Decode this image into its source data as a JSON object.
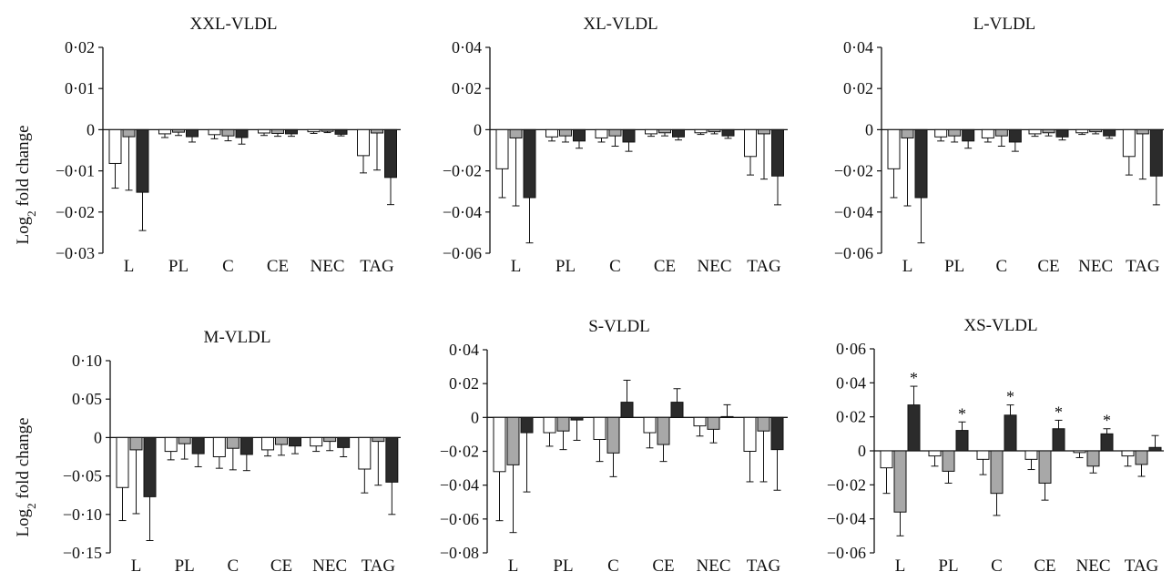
{
  "figure": {
    "ylabel_main": "Log",
    "ylabel_sub": "2",
    "ylabel_rest": " fold change",
    "series_colors": [
      "#ffffff",
      "#a8a8a8",
      "#2b2b2b"
    ]
  },
  "chart_data": [
    {
      "type": "bar",
      "title": "XXL-VLDL",
      "categories": [
        "L",
        "PL",
        "C",
        "CE",
        "NEC",
        "TAG"
      ],
      "ylim": [
        -0.03,
        0.02
      ],
      "yticks": [
        0.02,
        0.01,
        0,
        -0.01,
        -0.02,
        -0.03
      ],
      "ytick_labels": [
        "0·02",
        "0·01",
        "0",
        "−0·01",
        "−0·02",
        "−0·03"
      ],
      "series": [
        {
          "values": [
            -0.0082,
            -0.001,
            -0.0012,
            -0.0008,
            -0.0005,
            -0.0063
          ],
          "errors": [
            0.006,
            0.0009,
            0.001,
            0.0006,
            0.0004,
            0.0042
          ]
        },
        {
          "values": [
            -0.0017,
            -0.0006,
            -0.0015,
            -0.0009,
            -0.0004,
            -0.0008
          ],
          "errors": [
            0.013,
            0.0008,
            0.0012,
            0.0007,
            0.0003,
            0.009
          ]
        },
        {
          "values": [
            -0.0152,
            -0.0017,
            -0.0019,
            -0.001,
            -0.0011,
            -0.0116
          ],
          "errors": [
            0.0093,
            0.0013,
            0.0016,
            0.0006,
            0.0004,
            0.0066
          ]
        }
      ],
      "significant": [
        [],
        [],
        []
      ]
    },
    {
      "type": "bar",
      "title": "XL-VLDL",
      "categories": [
        "L",
        "PL",
        "C",
        "CE",
        "NEC",
        "TAG"
      ],
      "ylim": [
        -0.06,
        0.04
      ],
      "yticks": [
        0.04,
        0.02,
        0,
        -0.02,
        -0.04,
        -0.06
      ],
      "ytick_labels": [
        "0·04",
        "0·02",
        "0",
        "−0·02",
        "−0·04",
        "−0·06"
      ],
      "series": [
        {
          "values": [
            -0.019,
            -0.0035,
            -0.004,
            -0.002,
            -0.0015,
            -0.013
          ],
          "errors": [
            0.014,
            0.002,
            0.002,
            0.0012,
            0.0008,
            0.009
          ]
        },
        {
          "values": [
            -0.004,
            -0.003,
            -0.003,
            -0.0015,
            -0.001,
            -0.002
          ],
          "errors": [
            0.033,
            0.003,
            0.005,
            0.0015,
            0.001,
            0.022
          ]
        },
        {
          "values": [
            -0.033,
            -0.0055,
            -0.006,
            -0.0035,
            -0.003,
            -0.0225
          ],
          "errors": [
            0.022,
            0.0035,
            0.0045,
            0.0015,
            0.0012,
            0.014
          ]
        }
      ],
      "significant": [
        [],
        [],
        []
      ]
    },
    {
      "type": "bar",
      "title": "L-VLDL",
      "categories": [
        "L",
        "PL",
        "C",
        "CE",
        "NEC",
        "TAG"
      ],
      "ylim": [
        -0.06,
        0.04
      ],
      "yticks": [
        0.04,
        0.02,
        0,
        -0.02,
        -0.04,
        -0.06
      ],
      "ytick_labels": [
        "0·04",
        "0·02",
        "0",
        "−0·02",
        "−0·04",
        "−0·06"
      ],
      "series": [
        {
          "values": [
            -0.019,
            -0.0035,
            -0.004,
            -0.002,
            -0.0015,
            -0.013
          ],
          "errors": [
            0.014,
            0.002,
            0.002,
            0.0012,
            0.0008,
            0.009
          ]
        },
        {
          "values": [
            -0.004,
            -0.003,
            -0.003,
            -0.0015,
            -0.001,
            -0.002
          ],
          "errors": [
            0.033,
            0.003,
            0.005,
            0.0015,
            0.001,
            0.022
          ]
        },
        {
          "values": [
            -0.033,
            -0.0055,
            -0.006,
            -0.0035,
            -0.003,
            -0.0225
          ],
          "errors": [
            0.022,
            0.0035,
            0.0045,
            0.0015,
            0.0012,
            0.014
          ]
        }
      ],
      "significant": [
        [],
        [],
        []
      ]
    },
    {
      "type": "bar",
      "title": "M-VLDL",
      "categories": [
        "L",
        "PL",
        "C",
        "CE",
        "NEC",
        "TAG"
      ],
      "ylim": [
        -0.15,
        0.1
      ],
      "yticks": [
        0.1,
        0.05,
        0,
        -0.05,
        -0.1,
        -0.15
      ],
      "ytick_labels": [
        "0·10",
        "0·05",
        "0",
        "−0·05",
        "−0·10",
        "−0·15"
      ],
      "series": [
        {
          "values": [
            -0.065,
            -0.018,
            -0.025,
            -0.016,
            -0.011,
            -0.041
          ],
          "errors": [
            0.043,
            0.011,
            0.015,
            0.008,
            0.007,
            0.031
          ]
        },
        {
          "values": [
            -0.016,
            -0.008,
            -0.014,
            -0.009,
            -0.005,
            -0.005
          ],
          "errors": [
            0.083,
            0.02,
            0.028,
            0.014,
            0.012,
            0.057
          ]
        },
        {
          "values": [
            -0.077,
            -0.021,
            -0.022,
            -0.011,
            -0.013,
            -0.058
          ],
          "errors": [
            0.057,
            0.017,
            0.021,
            0.01,
            0.012,
            0.042
          ]
        }
      ],
      "significant": [
        [],
        [],
        []
      ]
    },
    {
      "type": "bar",
      "title": "S-VLDL",
      "categories": [
        "L",
        "PL",
        "C",
        "CE",
        "NEC",
        "TAG"
      ],
      "ylim": [
        -0.08,
        0.04
      ],
      "yticks": [
        0.04,
        0.02,
        0,
        -0.02,
        -0.04,
        -0.06,
        -0.08
      ],
      "ytick_labels": [
        "0·04",
        "0·02",
        "0",
        "−0·02",
        "−0·04",
        "−0·06",
        "−0·08"
      ],
      "series": [
        {
          "values": [
            -0.032,
            -0.009,
            -0.013,
            -0.009,
            -0.005,
            -0.02
          ],
          "errors": [
            0.029,
            0.008,
            0.013,
            0.009,
            0.006,
            0.018
          ]
        },
        {
          "values": [
            -0.028,
            -0.008,
            -0.021,
            -0.016,
            -0.007,
            -0.008
          ],
          "errors": [
            0.04,
            0.011,
            0.014,
            0.01,
            0.008,
            0.03
          ]
        },
        {
          "values": [
            -0.009,
            -0.0015,
            0.009,
            0.009,
            0.0005,
            -0.019
          ],
          "errors": [
            0.035,
            0.012,
            0.013,
            0.008,
            0.007,
            0.024
          ]
        }
      ],
      "significant": [
        [],
        [],
        []
      ]
    },
    {
      "type": "bar",
      "title": "XS-VLDL",
      "categories": [
        "L",
        "PL",
        "C",
        "CE",
        "NEC",
        "TAG"
      ],
      "ylim": [
        -0.06,
        0.06
      ],
      "yticks": [
        0.06,
        0.04,
        0.02,
        0,
        -0.02,
        -0.04,
        -0.06
      ],
      "ytick_labels": [
        "0·06",
        "0·04",
        "0·02",
        "0",
        "−0·02",
        "−0·04",
        "−0·06"
      ],
      "series": [
        {
          "values": [
            -0.01,
            -0.003,
            -0.005,
            -0.005,
            -0.001,
            -0.003
          ],
          "errors": [
            0.015,
            0.006,
            0.009,
            0.006,
            0.003,
            0.006
          ]
        },
        {
          "values": [
            -0.036,
            -0.012,
            -0.025,
            -0.019,
            -0.009,
            -0.008
          ],
          "errors": [
            0.014,
            0.007,
            0.013,
            0.01,
            0.004,
            0.007
          ]
        },
        {
          "values": [
            0.027,
            0.012,
            0.021,
            0.013,
            0.01,
            0.002
          ],
          "errors": [
            0.011,
            0.005,
            0.006,
            0.005,
            0.003,
            0.007
          ]
        }
      ],
      "significant_marker": "*",
      "significant": [
        [],
        [],
        [
          0,
          1,
          2,
          3,
          4
        ]
      ]
    }
  ]
}
